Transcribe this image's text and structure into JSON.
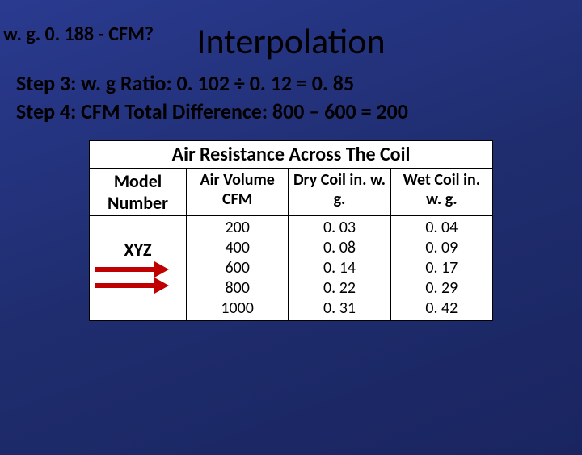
{
  "corner_label": "w. g. 0. 188 - CFM?",
  "title": "Interpolation",
  "steps": [
    "Step 3: w. g Ratio: 0. 102 ÷ 0. 12 = 0. 85",
    "Step 4: CFM Total Difference: 800 – 600 = 200"
  ],
  "table": {
    "title": "Air Resistance Across The Coil",
    "headers": {
      "model": "Model Number",
      "air_volume": "Air Volume CFM",
      "dry": "Dry Coil in. w. g.",
      "wet": "Wet Coil in. w. g."
    },
    "model_value": "XYZ",
    "cfm": [
      "200",
      "400",
      "600",
      "800",
      "1000"
    ],
    "dry": [
      "0. 03",
      "0. 08",
      "0. 14",
      "0. 22",
      "0. 31"
    ],
    "wet": [
      "0. 04",
      "0. 09",
      "0. 17",
      "0. 29",
      "0. 42"
    ]
  },
  "colors": {
    "arrow": "#c00000",
    "bg_top": "#2a3a8f",
    "bg_bottom": "#1a2560",
    "text": "#000000",
    "table_bg": "#ffffff"
  }
}
